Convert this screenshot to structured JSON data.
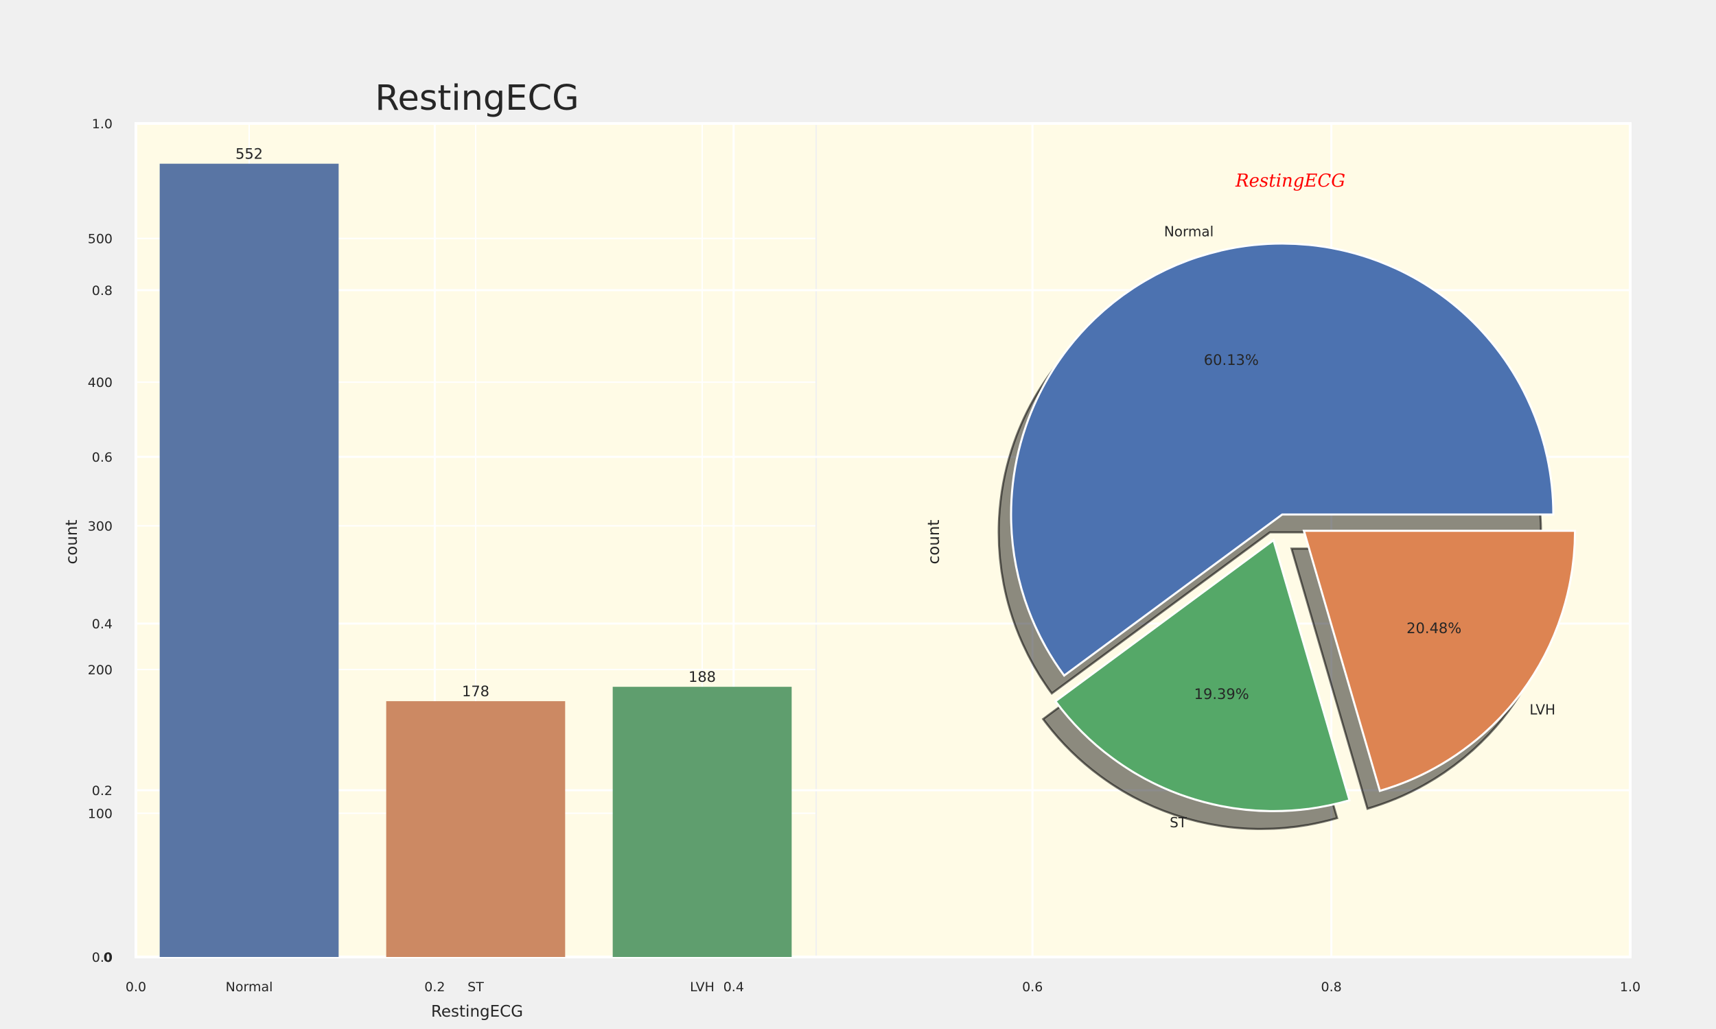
{
  "figure": {
    "title": "RestingECG",
    "background": "#f0f0f0",
    "panel_color": "#fffbe6",
    "grid_color": "#ffffff",
    "overlay_axis_ticks_x": [
      "0.0",
      "0.2",
      "0.4",
      "0.6",
      "0.8",
      "1.0"
    ],
    "overlay_axis_ticks_y": [
      "0.0",
      "0.2",
      "0.4",
      "0.6",
      "0.8",
      "1.0"
    ]
  },
  "chart_data": [
    {
      "type": "bar",
      "title": "",
      "xlabel": "RestingECG",
      "ylabel": "count",
      "categories": [
        "Normal",
        "ST",
        "LVH"
      ],
      "values": [
        552,
        178,
        188
      ],
      "colors": [
        "#5975a4",
        "#cc8963",
        "#5f9e6e"
      ],
      "ylim": [
        0,
        580
      ],
      "yticks": [
        0,
        100,
        200,
        300,
        400,
        500
      ],
      "data_labels": [
        "552",
        "178",
        "188"
      ],
      "grid": true
    },
    {
      "type": "pie",
      "title": "RestingECG",
      "title_color": "#ff0000",
      "ylabel": "count",
      "slices": [
        {
          "label": "Normal",
          "value": 60.13,
          "pct_label": "60.13%",
          "color": "#4c72b0"
        },
        {
          "label": "ST",
          "value": 19.39,
          "pct_label": "19.39%",
          "color": "#55a868"
        },
        {
          "label": "LVH",
          "value": 20.48,
          "pct_label": "20.48%",
          "color": "#dd8452"
        }
      ],
      "explode": [
        0,
        0.1,
        0.1
      ],
      "shadow": true,
      "startangle": 0,
      "grid": true
    }
  ]
}
